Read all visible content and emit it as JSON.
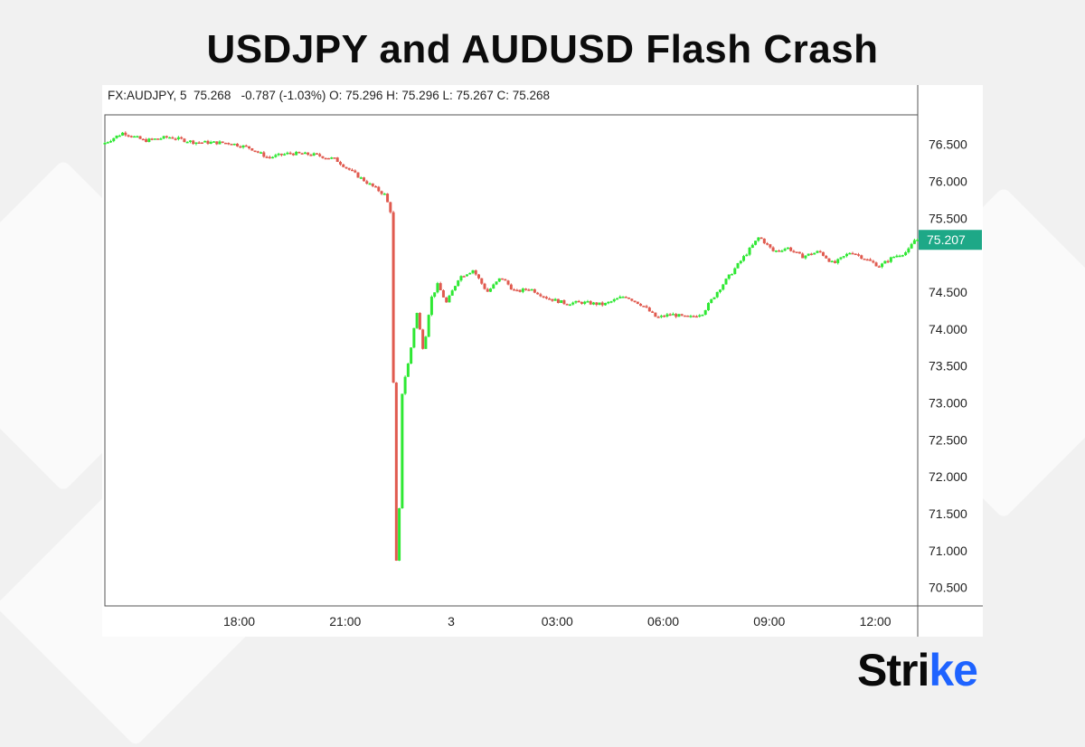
{
  "title": "USDJPY and AUDUSD Flash Crash",
  "ohlc_line": "FX:AUDJPY, 5  75.268   -0.787 (-1.03%) O: 75.296 H: 75.296 L: 75.267 C: 75.268",
  "brand": {
    "text_main": "Stri",
    "text_accent": "ke",
    "accent_color": "#1e63ff"
  },
  "colors": {
    "up": "#2ee833",
    "down": "#e05a4f",
    "price_label_bg": "#1ea887",
    "axis": "#555555"
  },
  "chart_data": {
    "type": "candlestick",
    "symbol": "FX:AUDJPY",
    "interval": "5",
    "ylim": [
      70.25,
      76.9
    ],
    "y_ticks": [
      "76.500",
      "76.000",
      "75.500",
      "74.500",
      "74.000",
      "73.500",
      "73.000",
      "72.500",
      "72.000",
      "71.500",
      "71.000",
      "70.500"
    ],
    "y_tick_values": [
      76.5,
      76.0,
      75.5,
      74.5,
      74.0,
      73.5,
      73.0,
      72.5,
      72.0,
      71.5,
      71.0,
      70.5
    ],
    "x_ticks": [
      "18:00",
      "21:00",
      "3",
      "03:00",
      "06:00",
      "09:00",
      "12:00"
    ],
    "x_tick_hours": [
      -6,
      -3,
      0,
      3,
      6,
      9,
      12
    ],
    "x_range_hours": [
      -9.8,
      13.2
    ],
    "current_price": "75.207",
    "current_price_value": 75.207,
    "price_path": [
      [
        -9.8,
        76.5
      ],
      [
        -9.2,
        76.66
      ],
      [
        -8.6,
        76.55
      ],
      [
        -7.9,
        76.6
      ],
      [
        -7.2,
        76.53
      ],
      [
        -6.2,
        76.52
      ],
      [
        -5.6,
        76.45
      ],
      [
        -5.1,
        76.32
      ],
      [
        -4.5,
        76.38
      ],
      [
        -3.8,
        76.36
      ],
      [
        -3.2,
        76.3
      ],
      [
        -2.7,
        76.12
      ],
      [
        -2.2,
        75.95
      ],
      [
        -1.8,
        75.82
      ],
      [
        -1.6,
        75.55
      ],
      [
        -1.5,
        70.65
      ],
      [
        -1.4,
        71.3
      ],
      [
        -1.3,
        73.2
      ],
      [
        -1.1,
        73.6
      ],
      [
        -0.9,
        74.25
      ],
      [
        -0.7,
        73.7
      ],
      [
        -0.5,
        74.4
      ],
      [
        -0.3,
        74.6
      ],
      [
        -0.05,
        74.35
      ],
      [
        0.3,
        74.7
      ],
      [
        0.7,
        74.8
      ],
      [
        1.1,
        74.5
      ],
      [
        1.5,
        74.7
      ],
      [
        1.9,
        74.5
      ],
      [
        2.3,
        74.55
      ],
      [
        2.8,
        74.42
      ],
      [
        3.3,
        74.35
      ],
      [
        3.8,
        74.36
      ],
      [
        4.4,
        74.33
      ],
      [
        5.0,
        74.45
      ],
      [
        5.5,
        74.32
      ],
      [
        5.9,
        74.15
      ],
      [
        6.3,
        74.2
      ],
      [
        6.8,
        74.15
      ],
      [
        7.2,
        74.22
      ],
      [
        7.6,
        74.5
      ],
      [
        8.0,
        74.75
      ],
      [
        8.4,
        75.0
      ],
      [
        8.8,
        75.25
      ],
      [
        9.2,
        75.05
      ],
      [
        9.6,
        75.1
      ],
      [
        10.0,
        74.98
      ],
      [
        10.5,
        75.05
      ],
      [
        10.9,
        74.88
      ],
      [
        11.4,
        75.05
      ],
      [
        11.8,
        74.95
      ],
      [
        12.2,
        74.85
      ],
      [
        12.6,
        74.98
      ],
      [
        13.0,
        75.05
      ],
      [
        13.2,
        75.21
      ]
    ]
  }
}
